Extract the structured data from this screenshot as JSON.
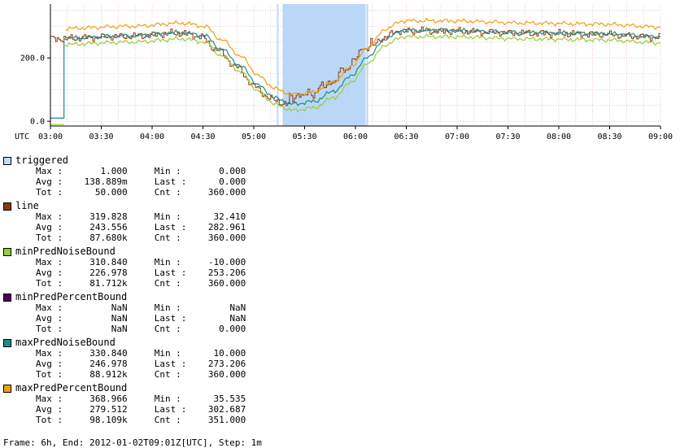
{
  "chart_data": {
    "type": "line",
    "xlabel": "",
    "ylabel": "",
    "timezone_label": "UTC",
    "x_tick_labels": [
      "03:00",
      "03:30",
      "04:00",
      "04:30",
      "05:00",
      "05:30",
      "06:00",
      "06:30",
      "07:00",
      "07:30",
      "08:00",
      "08:30",
      "09:00"
    ],
    "y_tick_labels": [
      "0.0",
      "200.0"
    ],
    "ylim": [
      -15,
      370
    ],
    "xlim_minutes": [
      0,
      360
    ],
    "grid": true,
    "triggered_span_minutes": [
      137,
      186
    ],
    "series": [
      {
        "name": "triggered",
        "color": "#bbd7f7",
        "kind": "span"
      },
      {
        "name": "line",
        "color": "#8b3a0f",
        "kind": "step"
      },
      {
        "name": "minPredNoiseBound",
        "color": "#9acd32",
        "kind": "line"
      },
      {
        "name": "minPredPercentBound",
        "color": "#4b0055",
        "kind": "line"
      },
      {
        "name": "maxPredNoiseBound",
        "color": "#1e8b84",
        "kind": "line"
      },
      {
        "name": "maxPredPercentBound",
        "color": "#f0a010",
        "kind": "line"
      }
    ]
  },
  "legend": [
    {
      "name": "triggered",
      "color": "#c3dbf6",
      "stats": [
        [
          "Max :",
          "1.000",
          "Min :",
          "0.000"
        ],
        [
          "Avg :",
          "138.889m",
          "Last :",
          "0.000"
        ],
        [
          "Tot :",
          "50.000",
          "Cnt :",
          "360.000"
        ]
      ]
    },
    {
      "name": "line",
      "color": "#8b3a0f",
      "stats": [
        [
          "Max :",
          "319.828",
          "Min :",
          "32.410"
        ],
        [
          "Avg :",
          "243.556",
          "Last :",
          "282.961"
        ],
        [
          "Tot :",
          "87.680k",
          "Cnt :",
          "360.000"
        ]
      ]
    },
    {
      "name": "minPredNoiseBound",
      "color": "#9acd32",
      "stats": [
        [
          "Max :",
          "310.840",
          "Min :",
          "-10.000"
        ],
        [
          "Avg :",
          "226.978",
          "Last :",
          "253.206"
        ],
        [
          "Tot :",
          "81.712k",
          "Cnt :",
          "360.000"
        ]
      ]
    },
    {
      "name": "minPredPercentBound",
      "color": "#4b0055",
      "stats": [
        [
          "Max :",
          "NaN",
          "Min :",
          "NaN"
        ],
        [
          "Avg :",
          "NaN",
          "Last :",
          "NaN"
        ],
        [
          "Tot :",
          "NaN",
          "Cnt :",
          "0.000"
        ]
      ]
    },
    {
      "name": "maxPredNoiseBound",
      "color": "#1e8b84",
      "stats": [
        [
          "Max :",
          "330.840",
          "Min :",
          "10.000"
        ],
        [
          "Avg :",
          "246.978",
          "Last :",
          "273.206"
        ],
        [
          "Tot :",
          "88.912k",
          "Cnt :",
          "360.000"
        ]
      ]
    },
    {
      "name": "maxPredPercentBound",
      "color": "#f0a010",
      "stats": [
        [
          "Max :",
          "368.966",
          "Min :",
          "35.535"
        ],
        [
          "Avg :",
          "279.512",
          "Last :",
          "302.687"
        ],
        [
          "Tot :",
          "98.109k",
          "Cnt :",
          "351.000"
        ]
      ]
    }
  ],
  "footer": "Frame: 6h, End: 2012-01-02T09:01Z[UTC], Step: 1m"
}
